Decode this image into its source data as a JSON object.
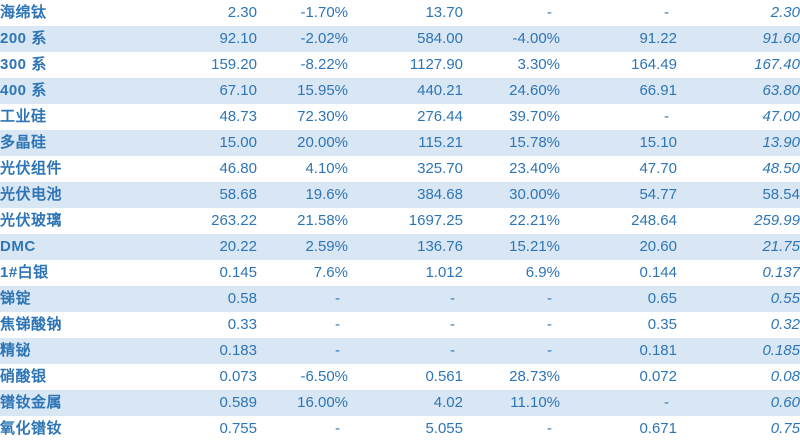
{
  "table": {
    "title": "commodity-price-table",
    "colors": {
      "text": "#2E75B6",
      "stripe": "#D9E6F4",
      "background": "#FFFFFF"
    },
    "columns": {
      "count": 7,
      "first_is_label": true,
      "numeric_alignment": "right",
      "last_column_style": "italic"
    },
    "rows": [
      {
        "label": "海绵钛",
        "values": [
          "2.30",
          "-1.70%",
          "13.70",
          "-",
          "-",
          "2.30"
        ],
        "last_italic": true
      },
      {
        "label": "200 系",
        "values": [
          "92.10",
          "-2.02%",
          "584.00",
          "-4.00%",
          "91.22",
          "91.60"
        ],
        "last_italic": true
      },
      {
        "label": "300 系",
        "values": [
          "159.20",
          "-8.22%",
          "1127.90",
          "3.30%",
          "164.49",
          "167.40"
        ],
        "last_italic": true
      },
      {
        "label": "400 系",
        "values": [
          "67.10",
          "15.95%",
          "440.21",
          "24.60%",
          "66.91",
          "63.80"
        ],
        "last_italic": true
      },
      {
        "label": "工业硅",
        "values": [
          "48.73",
          "72.30%",
          "276.44",
          "39.70%",
          "-",
          "47.00"
        ],
        "last_italic": true
      },
      {
        "label": "多晶硅",
        "values": [
          "15.00",
          "20.00%",
          "115.21",
          "15.78%",
          "15.10",
          "13.90"
        ],
        "last_italic": true
      },
      {
        "label": "光伏组件",
        "values": [
          "46.80",
          "4.10%",
          "325.70",
          "23.40%",
          "47.70",
          "48.50"
        ],
        "last_italic": true
      },
      {
        "label": "光伏电池",
        "values": [
          "58.68",
          "19.6%",
          "384.68",
          "30.00%",
          "54.77",
          "58.54"
        ],
        "last_italic": false
      },
      {
        "label": "光伏玻璃",
        "values": [
          "263.22",
          "21.58%",
          "1697.25",
          "22.21%",
          "248.64",
          "259.99"
        ],
        "last_italic": true
      },
      {
        "label": "DMC",
        "values": [
          "20.22",
          "2.59%",
          "136.76",
          "15.21%",
          "20.60",
          "21.75"
        ],
        "last_italic": true
      },
      {
        "label": "1#白银",
        "values": [
          "0.145",
          "7.6%",
          "1.012",
          "6.9%",
          "0.144",
          "0.137"
        ],
        "last_italic": true
      },
      {
        "label": "锑锭",
        "values": [
          "0.58",
          "-",
          "-",
          "-",
          "0.65",
          "0.55"
        ],
        "last_italic": true
      },
      {
        "label": "焦锑酸钠",
        "values": [
          "0.33",
          "-",
          "-",
          "-",
          "0.35",
          "0.32"
        ],
        "last_italic": true
      },
      {
        "label": "精铋",
        "values": [
          "0.183",
          "-",
          "-",
          "-",
          "0.181",
          "0.185"
        ],
        "last_italic": true
      },
      {
        "label": "硝酸银",
        "values": [
          "0.073",
          "-6.50%",
          "0.561",
          "28.73%",
          "0.072",
          "0.08"
        ],
        "last_italic": true
      },
      {
        "label": "镨钕金属",
        "values": [
          "0.589",
          "16.00%",
          "4.02",
          "11.10%",
          "-",
          "0.60"
        ],
        "last_italic": true
      },
      {
        "label": "氧化镨钕",
        "values": [
          "0.755",
          "-",
          "5.055",
          "-",
          "0.671",
          "0.75"
        ],
        "last_italic": true
      }
    ]
  }
}
